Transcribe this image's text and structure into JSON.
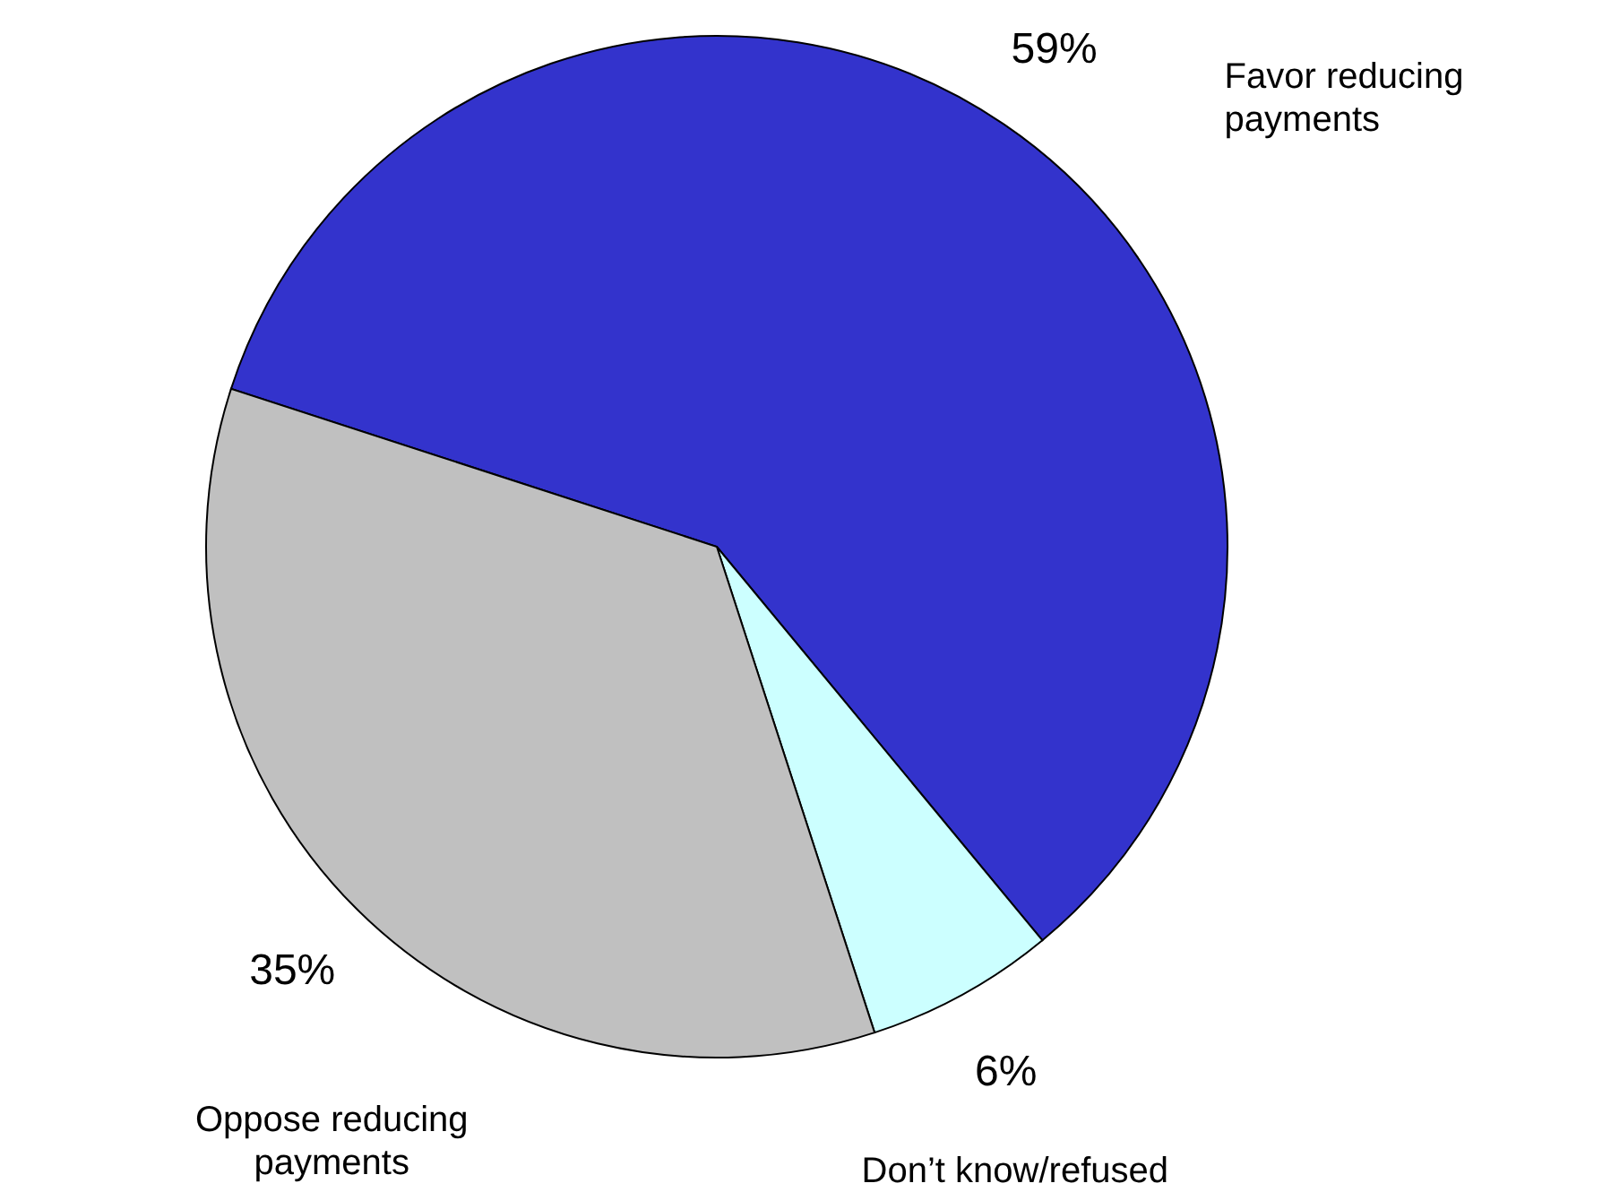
{
  "chart_data": {
    "type": "pie",
    "categories": [
      "Favor reducing payments",
      "Don’t know/refused",
      "Oppose reducing payments"
    ],
    "values": [
      59,
      6,
      35
    ],
    "colors": [
      "#3333cc",
      "#ccffff",
      "#c0c0c0"
    ],
    "value_labels": [
      "59%",
      "6%",
      "35%"
    ]
  }
}
